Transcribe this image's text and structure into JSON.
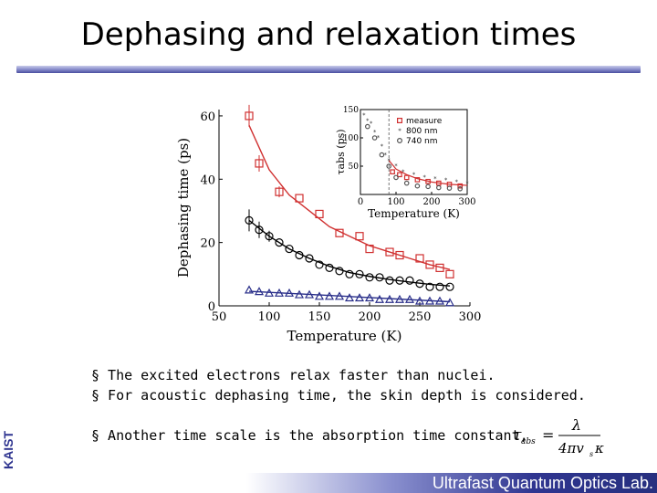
{
  "slide": {
    "title": "Dephasing and relaxation times",
    "side_label": "KAIST",
    "footer": "Ultrafast Quantum Optics Lab.",
    "bullets": [
      "§ The excited electrons relax faster than nuclei.",
      "§ For acoustic dephasing time, the skin depth is considered.",
      "§ Another time scale is the absorption time constant,"
    ],
    "formula": {
      "lhs": "τ",
      "lhs_sub": "abs",
      "numerator": "λ",
      "denominator": "4πv",
      "denominator_sub": "s",
      "denominator_tail": "κ"
    },
    "colors": {
      "title_bar": "#4a4fa0",
      "footer_bar": "#2f3590",
      "side_label": "#2f3590"
    }
  },
  "chart_data": [
    {
      "type": "scatter",
      "title": "",
      "xlabel": "Temperature (K)",
      "ylabel": "Dephasing time (ps)",
      "xlim": [
        50,
        300
      ],
      "ylim": [
        0,
        62
      ],
      "xticks": [
        50,
        100,
        150,
        200,
        250,
        300
      ],
      "yticks": [
        0,
        20,
        40,
        60
      ],
      "series": [
        {
          "marker": "square",
          "color": "#d03030",
          "x": [
            80,
            90,
            110,
            130,
            150,
            170,
            190,
            200,
            220,
            230,
            250,
            260,
            270,
            280
          ],
          "y": [
            60,
            45,
            36,
            34,
            29,
            23,
            22,
            18,
            17,
            16,
            15,
            13,
            12,
            10
          ],
          "fit_x": [
            80,
            100,
            120,
            140,
            160,
            180,
            200,
            220,
            240,
            260,
            280
          ],
          "fit_y": [
            57,
            43,
            35,
            30,
            25,
            22,
            19,
            17,
            15,
            13,
            11.5
          ]
        },
        {
          "marker": "circle",
          "color": "#000000",
          "x": [
            80,
            90,
            100,
            110,
            120,
            130,
            140,
            150,
            160,
            170,
            180,
            190,
            200,
            210,
            220,
            230,
            240,
            250,
            260,
            270,
            280
          ],
          "y": [
            27,
            24,
            22,
            20,
            18,
            16,
            15,
            13,
            12,
            11,
            10,
            10,
            9,
            9,
            8,
            8,
            8,
            7,
            6,
            6,
            6
          ],
          "fit_x": [
            80,
            100,
            120,
            140,
            160,
            180,
            200,
            220,
            240,
            260,
            280
          ],
          "fit_y": [
            27,
            22,
            18,
            15,
            12.5,
            10.5,
            9.3,
            8.3,
            7.5,
            6.8,
            6.3
          ]
        },
        {
          "marker": "triangle",
          "color": "#2a2f8a",
          "x": [
            80,
            90,
            100,
            110,
            120,
            130,
            140,
            150,
            160,
            170,
            180,
            190,
            200,
            210,
            220,
            230,
            240,
            250,
            260,
            270,
            280
          ],
          "y": [
            5,
            4.5,
            4,
            4,
            4,
            3.5,
            3.5,
            3,
            3,
            3,
            2.5,
            2.5,
            2.5,
            2,
            2,
            2,
            2,
            1.5,
            1.5,
            1.5,
            1
          ],
          "fit_x": [
            80,
            280
          ],
          "fit_y": [
            4.6,
            1.3
          ]
        }
      ]
    },
    {
      "type": "scatter",
      "title": "",
      "xlabel": "Temperature (K)",
      "ylabel": "τabs (ps)",
      "xlim": [
        0,
        300
      ],
      "ylim": [
        0,
        150
      ],
      "xticks": [
        0,
        100,
        200,
        300
      ],
      "yticks": [
        50,
        100,
        150
      ],
      "vline_x": 80,
      "legend_position": "top-right",
      "series": [
        {
          "name": "measure",
          "marker": "square",
          "color": "#d03030",
          "x": [
            90,
            110,
            130,
            160,
            190,
            220,
            250,
            280
          ],
          "y": [
            40,
            35,
            30,
            26,
            23,
            20,
            18,
            15
          ]
        },
        {
          "name": "800 nm",
          "marker": "star",
          "color": "#333333",
          "x": [
            10,
            20,
            30,
            40,
            50,
            60,
            70,
            80,
            100,
            120,
            150,
            180,
            210,
            240,
            270,
            300
          ],
          "y": [
            140,
            130,
            125,
            110,
            100,
            85,
            70,
            60,
            50,
            40,
            35,
            30,
            28,
            25,
            22,
            20
          ]
        },
        {
          "name": "740 nm",
          "marker": "circle",
          "color": "#555555",
          "x": [
            20,
            40,
            60,
            80,
            100,
            130,
            160,
            190,
            220,
            250,
            280
          ],
          "y": [
            120,
            100,
            70,
            50,
            30,
            20,
            15,
            14,
            12,
            11,
            10
          ]
        }
      ],
      "fit_x": [
        80,
        100,
        130,
        160,
        200,
        250,
        300
      ],
      "fit_y": [
        60,
        45,
        35,
        28,
        22,
        18,
        16
      ]
    }
  ]
}
